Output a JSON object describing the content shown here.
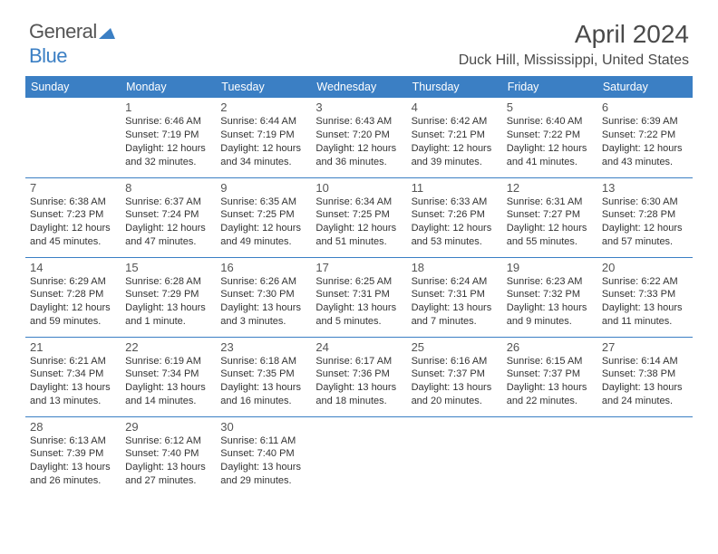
{
  "logo": {
    "part1": "General",
    "part2": "Blue"
  },
  "title": "April 2024",
  "subtitle": "Duck Hill, Mississippi, United States",
  "colors": {
    "header_bg": "#3b7fc4",
    "header_fg": "#ffffff",
    "border": "#3b7fc4",
    "text": "#333333"
  },
  "day_headers": [
    "Sunday",
    "Monday",
    "Tuesday",
    "Wednesday",
    "Thursday",
    "Friday",
    "Saturday"
  ],
  "weeks": [
    [
      null,
      {
        "n": "1",
        "sr": "6:46 AM",
        "ss": "7:19 PM",
        "dl1": "12 hours",
        "dl2": "and 32 minutes."
      },
      {
        "n": "2",
        "sr": "6:44 AM",
        "ss": "7:19 PM",
        "dl1": "12 hours",
        "dl2": "and 34 minutes."
      },
      {
        "n": "3",
        "sr": "6:43 AM",
        "ss": "7:20 PM",
        "dl1": "12 hours",
        "dl2": "and 36 minutes."
      },
      {
        "n": "4",
        "sr": "6:42 AM",
        "ss": "7:21 PM",
        "dl1": "12 hours",
        "dl2": "and 39 minutes."
      },
      {
        "n": "5",
        "sr": "6:40 AM",
        "ss": "7:22 PM",
        "dl1": "12 hours",
        "dl2": "and 41 minutes."
      },
      {
        "n": "6",
        "sr": "6:39 AM",
        "ss": "7:22 PM",
        "dl1": "12 hours",
        "dl2": "and 43 minutes."
      }
    ],
    [
      {
        "n": "7",
        "sr": "6:38 AM",
        "ss": "7:23 PM",
        "dl1": "12 hours",
        "dl2": "and 45 minutes."
      },
      {
        "n": "8",
        "sr": "6:37 AM",
        "ss": "7:24 PM",
        "dl1": "12 hours",
        "dl2": "and 47 minutes."
      },
      {
        "n": "9",
        "sr": "6:35 AM",
        "ss": "7:25 PM",
        "dl1": "12 hours",
        "dl2": "and 49 minutes."
      },
      {
        "n": "10",
        "sr": "6:34 AM",
        "ss": "7:25 PM",
        "dl1": "12 hours",
        "dl2": "and 51 minutes."
      },
      {
        "n": "11",
        "sr": "6:33 AM",
        "ss": "7:26 PM",
        "dl1": "12 hours",
        "dl2": "and 53 minutes."
      },
      {
        "n": "12",
        "sr": "6:31 AM",
        "ss": "7:27 PM",
        "dl1": "12 hours",
        "dl2": "and 55 minutes."
      },
      {
        "n": "13",
        "sr": "6:30 AM",
        "ss": "7:28 PM",
        "dl1": "12 hours",
        "dl2": "and 57 minutes."
      }
    ],
    [
      {
        "n": "14",
        "sr": "6:29 AM",
        "ss": "7:28 PM",
        "dl1": "12 hours",
        "dl2": "and 59 minutes."
      },
      {
        "n": "15",
        "sr": "6:28 AM",
        "ss": "7:29 PM",
        "dl1": "13 hours",
        "dl2": "and 1 minute."
      },
      {
        "n": "16",
        "sr": "6:26 AM",
        "ss": "7:30 PM",
        "dl1": "13 hours",
        "dl2": "and 3 minutes."
      },
      {
        "n": "17",
        "sr": "6:25 AM",
        "ss": "7:31 PM",
        "dl1": "13 hours",
        "dl2": "and 5 minutes."
      },
      {
        "n": "18",
        "sr": "6:24 AM",
        "ss": "7:31 PM",
        "dl1": "13 hours",
        "dl2": "and 7 minutes."
      },
      {
        "n": "19",
        "sr": "6:23 AM",
        "ss": "7:32 PM",
        "dl1": "13 hours",
        "dl2": "and 9 minutes."
      },
      {
        "n": "20",
        "sr": "6:22 AM",
        "ss": "7:33 PM",
        "dl1": "13 hours",
        "dl2": "and 11 minutes."
      }
    ],
    [
      {
        "n": "21",
        "sr": "6:21 AM",
        "ss": "7:34 PM",
        "dl1": "13 hours",
        "dl2": "and 13 minutes."
      },
      {
        "n": "22",
        "sr": "6:19 AM",
        "ss": "7:34 PM",
        "dl1": "13 hours",
        "dl2": "and 14 minutes."
      },
      {
        "n": "23",
        "sr": "6:18 AM",
        "ss": "7:35 PM",
        "dl1": "13 hours",
        "dl2": "and 16 minutes."
      },
      {
        "n": "24",
        "sr": "6:17 AM",
        "ss": "7:36 PM",
        "dl1": "13 hours",
        "dl2": "and 18 minutes."
      },
      {
        "n": "25",
        "sr": "6:16 AM",
        "ss": "7:37 PM",
        "dl1": "13 hours",
        "dl2": "and 20 minutes."
      },
      {
        "n": "26",
        "sr": "6:15 AM",
        "ss": "7:37 PM",
        "dl1": "13 hours",
        "dl2": "and 22 minutes."
      },
      {
        "n": "27",
        "sr": "6:14 AM",
        "ss": "7:38 PM",
        "dl1": "13 hours",
        "dl2": "and 24 minutes."
      }
    ],
    [
      {
        "n": "28",
        "sr": "6:13 AM",
        "ss": "7:39 PM",
        "dl1": "13 hours",
        "dl2": "and 26 minutes."
      },
      {
        "n": "29",
        "sr": "6:12 AM",
        "ss": "7:40 PM",
        "dl1": "13 hours",
        "dl2": "and 27 minutes."
      },
      {
        "n": "30",
        "sr": "6:11 AM",
        "ss": "7:40 PM",
        "dl1": "13 hours",
        "dl2": "and 29 minutes."
      },
      null,
      null,
      null,
      null
    ]
  ]
}
